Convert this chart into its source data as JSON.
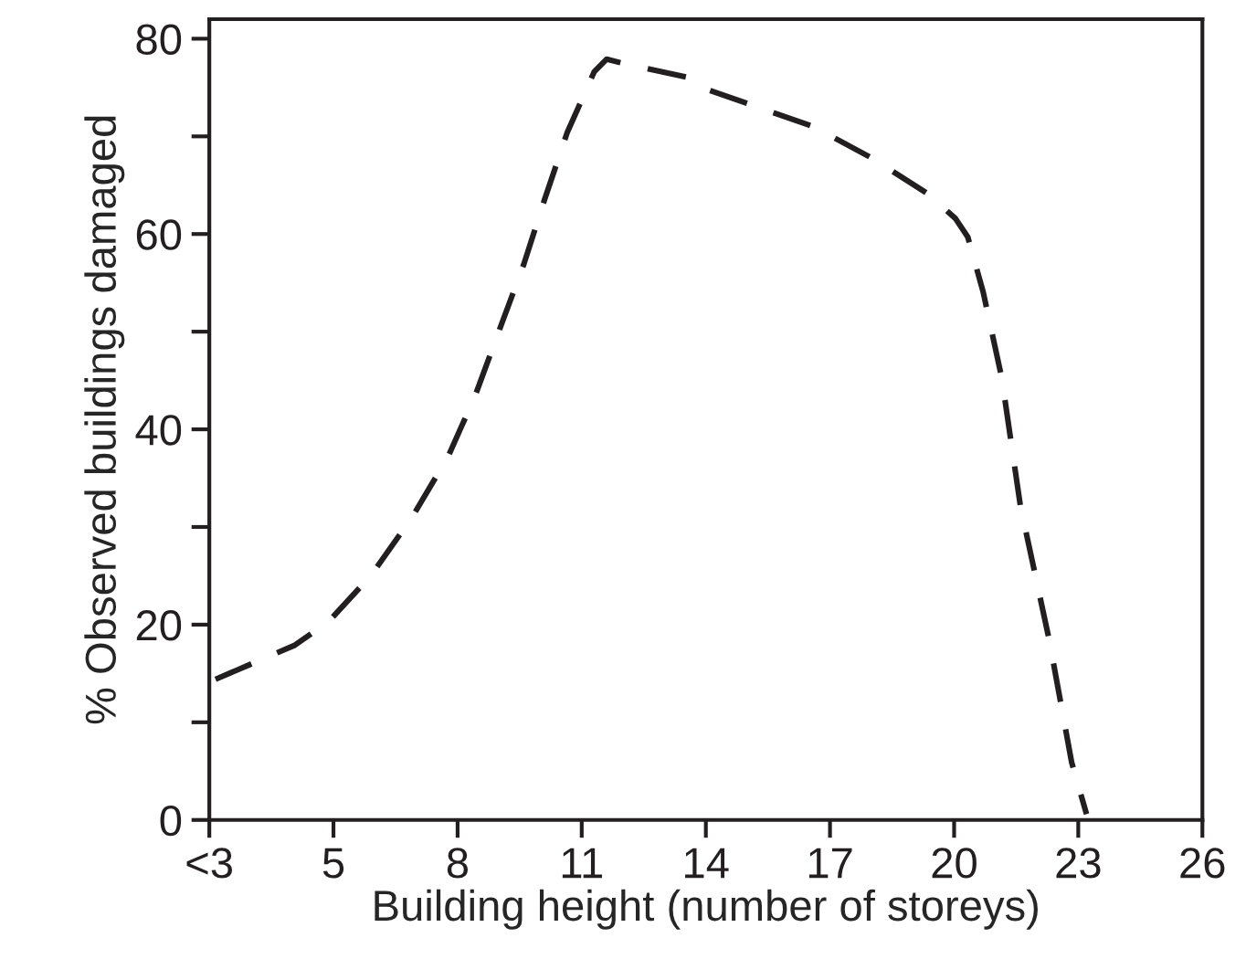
{
  "chart_data": {
    "type": "line",
    "xlabel": "Building height (number of storeys)",
    "ylabel": "% Observed buildings damaged",
    "xlim": [
      2,
      26
    ],
    "ylim": [
      0,
      82
    ],
    "xticks": [
      {
        "value": 2,
        "label": "<3"
      },
      5,
      8,
      11,
      14,
      17,
      20,
      23,
      26
    ],
    "yticks": [
      0,
      {
        "value": 10,
        "label": null
      },
      20,
      {
        "value": 30,
        "label": null
      },
      40,
      {
        "value": 50,
        "label": null
      },
      60,
      {
        "value": 70,
        "label": null
      },
      80
    ],
    "line_style": "dashed",
    "series": [
      {
        "color": "#231f20",
        "x": [
          2.15,
          4.07,
          4.88,
          5.9,
          6.9,
          7.77,
          8.43,
          9.02,
          9.6,
          10.1,
          10.65,
          11.3,
          11.6,
          11.98,
          13.6,
          14.1,
          16.6,
          18.0,
          19.37,
          20.03,
          20.33,
          20.7,
          21.15,
          21.6,
          22.3,
          22.84,
          23.2
        ],
        "values": [
          14.4,
          17.9,
          20.3,
          25.0,
          31.0,
          37.2,
          43.5,
          50.3,
          56.9,
          63.5,
          70.4,
          76.6,
          77.9,
          77.5,
          76.0,
          74.7,
          71.0,
          67.8,
          64.1,
          61.6,
          59.7,
          54.1,
          45.3,
          32.2,
          18.4,
          5.9,
          0.6
        ]
      }
    ]
  }
}
